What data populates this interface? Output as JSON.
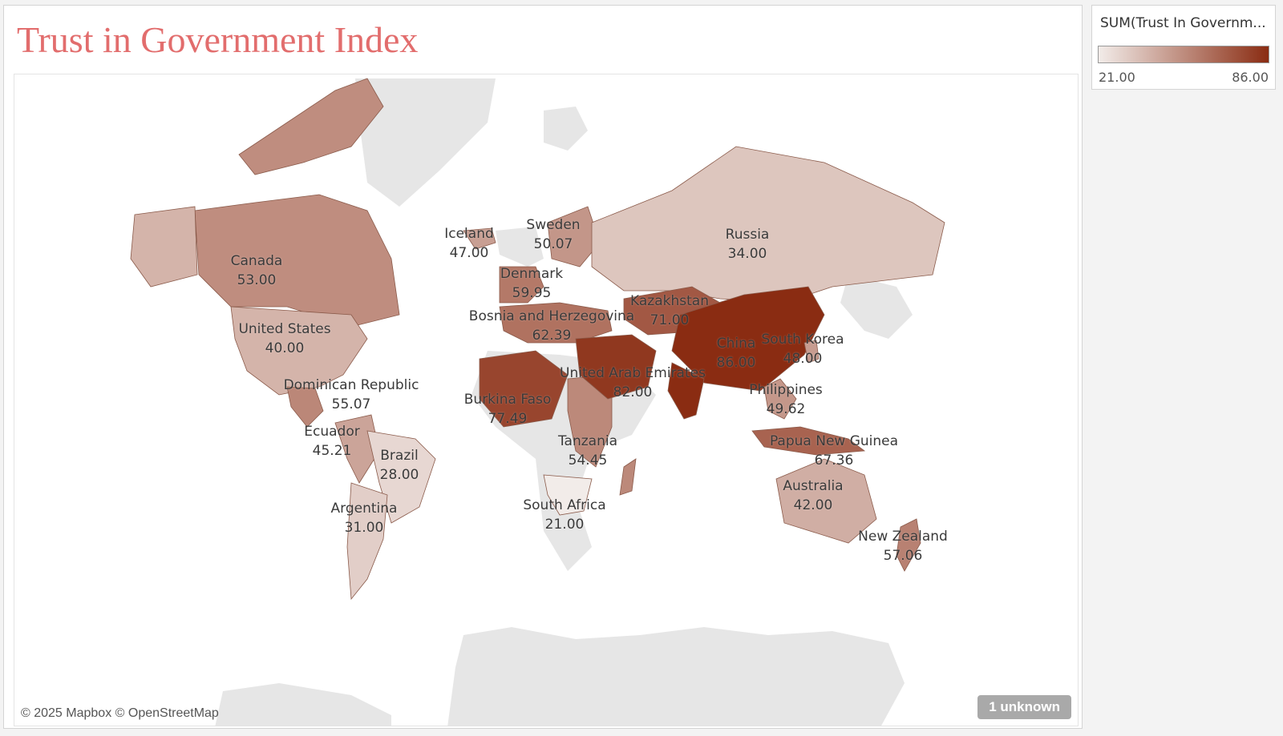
{
  "title": "Trust in Government Index",
  "legend": {
    "title": "SUM(Trust In Governm...",
    "min_label": "21.00",
    "max_label": "86.00",
    "min_value": 21,
    "max_value": 86,
    "color_low": "#f2ece9",
    "color_high": "#8a2c12"
  },
  "colors": {
    "title": "#e26d6d",
    "land_no_data": "#e6e6e6",
    "country_border": "#8a5a4a"
  },
  "countries": [
    {
      "name": "Canada",
      "value": "53.00",
      "num": 53
    },
    {
      "name": "United States",
      "value": "40.00",
      "num": 40
    },
    {
      "name": "Dominican Republic",
      "value": "55.07",
      "num": 55.07
    },
    {
      "name": "Ecuador",
      "value": "45.21",
      "num": 45.21
    },
    {
      "name": "Brazil",
      "value": "28.00",
      "num": 28
    },
    {
      "name": "Argentina",
      "value": "31.00",
      "num": 31
    },
    {
      "name": "Iceland",
      "value": "47.00",
      "num": 47
    },
    {
      "name": "Sweden",
      "value": "50.07",
      "num": 50.07
    },
    {
      "name": "Denmark",
      "value": "59.95",
      "num": 59.95
    },
    {
      "name": "Bosnia and Herzegovina",
      "value": "62.39",
      "num": 62.39
    },
    {
      "name": "Burkina Faso",
      "value": "77.49",
      "num": 77.49
    },
    {
      "name": "Tanzania",
      "value": "54.45",
      "num": 54.45
    },
    {
      "name": "South Africa",
      "value": "21.00",
      "num": 21
    },
    {
      "name": "Russia",
      "value": "34.00",
      "num": 34
    },
    {
      "name": "Kazakhstan",
      "value": "71.00",
      "num": 71
    },
    {
      "name": "United Arab Emirates",
      "value": "82.00",
      "num": 82
    },
    {
      "name": "China",
      "value": "86.00",
      "num": 86
    },
    {
      "name": "South Korea",
      "value": "48.00",
      "num": 48
    },
    {
      "name": "Philippines",
      "value": "49.62",
      "num": 49.62
    },
    {
      "name": "Papua New Guinea",
      "value": "67.36",
      "num": 67.36
    },
    {
      "name": "Australia",
      "value": "42.00",
      "num": 42
    },
    {
      "name": "New Zealand",
      "value": "57.06",
      "num": 57.06
    }
  ],
  "attribution": "© 2025 Mapbox © OpenStreetMap",
  "unknown_pill": "1 unknown"
}
